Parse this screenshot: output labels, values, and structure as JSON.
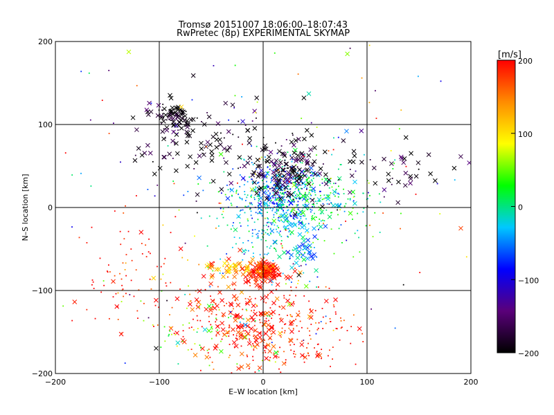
{
  "chart_data": {
    "type": "scatter",
    "title": "Tromsø 20151007 18:06:00–18:07:43",
    "subtitle": "RwPretec (8p) EXPERIMENTAL SKYMAP",
    "xlabel": "E–W location [km]",
    "ylabel": "N–S location [km]",
    "xlim": [
      -200,
      200
    ],
    "ylim": [
      -200,
      200
    ],
    "xticks": [
      "−200",
      "−100",
      "0",
      "100",
      "200"
    ],
    "yticks": [
      "−200",
      "−100",
      "0",
      "100",
      "200"
    ],
    "grid": true,
    "markers": [
      "cross",
      "dot"
    ],
    "colorbar": {
      "label": "[m/s]",
      "range": [
        -200,
        200
      ],
      "ticks": [
        "200",
        "100",
        "0",
        "−100",
        "−200"
      ],
      "colors": [
        "#000000",
        "#5a007a",
        "#0000ff",
        "#00c8ff",
        "#00ff00",
        "#ffff00",
        "#ff8c00",
        "#ff0000"
      ]
    },
    "clusters": [
      {
        "x": 15,
        "y": 15,
        "sx": 22,
        "sy": 18,
        "v": -60,
        "n": 320,
        "m": "dot"
      },
      {
        "x": 40,
        "y": 10,
        "sx": 35,
        "sy": 25,
        "v": 10,
        "n": 280,
        "m": "dot"
      },
      {
        "x": 5,
        "y": -15,
        "sx": 20,
        "sy": 30,
        "v": -20,
        "n": 200,
        "m": "dot"
      },
      {
        "x": 20,
        "y": 45,
        "sx": 20,
        "sy": 20,
        "v": -190,
        "n": 160,
        "m": "cross"
      },
      {
        "x": -85,
        "y": 110,
        "sx": 10,
        "sy": 10,
        "v": -200,
        "n": 80,
        "m": "cross"
      },
      {
        "x": -60,
        "y": 80,
        "sx": 40,
        "sy": 30,
        "v": -190,
        "n": 90,
        "m": "cross"
      },
      {
        "x": 0,
        "y": -78,
        "sx": 8,
        "sy": 6,
        "v": 200,
        "n": 150,
        "m": "cross"
      },
      {
        "x": -25,
        "y": -73,
        "sx": 15,
        "sy": 4,
        "v": 120,
        "n": 50,
        "m": "cross"
      },
      {
        "x": 10,
        "y": -150,
        "sx": 40,
        "sy": 30,
        "v": 195,
        "n": 260,
        "m": "dot"
      },
      {
        "x": -10,
        "y": -130,
        "sx": 35,
        "sy": 30,
        "v": 190,
        "n": 160,
        "m": "cross"
      },
      {
        "x": -130,
        "y": -80,
        "sx": 30,
        "sy": 40,
        "v": 195,
        "n": 90,
        "m": "dot"
      },
      {
        "x": -60,
        "y": -150,
        "sx": 30,
        "sy": 25,
        "v": 40,
        "n": 60,
        "m": "dot"
      },
      {
        "x": 120,
        "y": 40,
        "sx": 40,
        "sy": 20,
        "v": -180,
        "n": 50,
        "m": "cross"
      },
      {
        "x": 40,
        "y": -55,
        "sx": 12,
        "sy": 10,
        "v": -40,
        "n": 40,
        "m": "cross"
      },
      {
        "x": 0,
        "y": 0,
        "sx": 110,
        "sy": 110,
        "v": 0,
        "n": 220,
        "m": "dot"
      }
    ]
  }
}
